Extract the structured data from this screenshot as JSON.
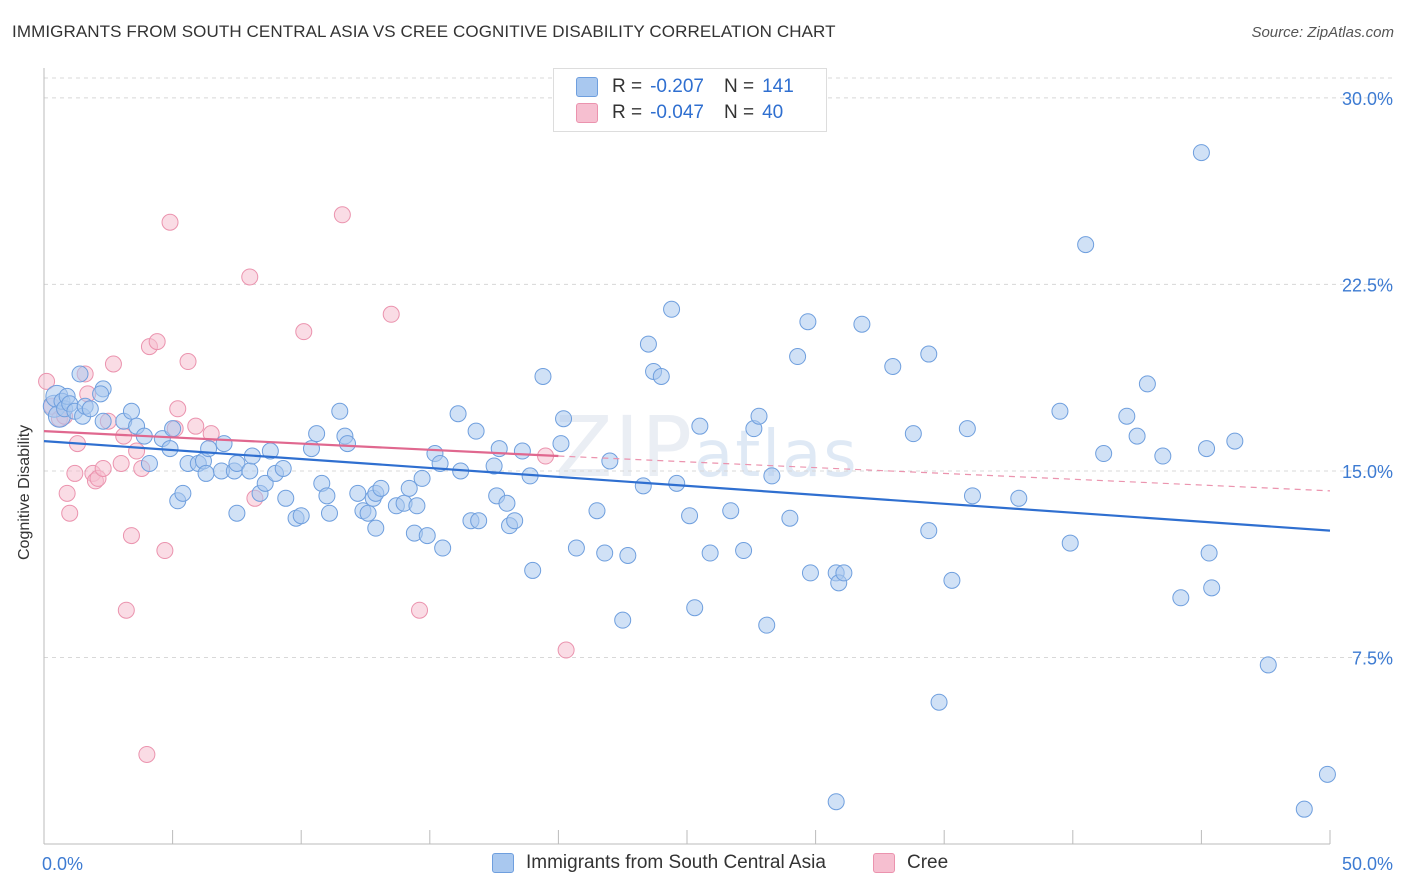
{
  "header": {
    "title": "IMMIGRANTS FROM SOUTH CENTRAL ASIA VS CREE COGNITIVE DISABILITY CORRELATION CHART",
    "source": "Source: ZipAtlas.com"
  },
  "watermark": {
    "zip": "ZIP",
    "atlas": "atlas"
  },
  "legend": {
    "rows": [
      {
        "r_label": "R =",
        "r_value": "-0.207",
        "n_label": "N =",
        "n_value": "141"
      },
      {
        "r_label": "R =",
        "r_value": "-0.047",
        "n_label": "N =",
        "n_value": "40"
      }
    ]
  },
  "colors": {
    "blue_fill": "#a9c8ef",
    "blue_stroke": "#6f9fde",
    "blue_line": "#2f6fd0",
    "pink_fill": "#f6bfd0",
    "pink_stroke": "#eb93ae",
    "pink_line": "#e0688f",
    "grid": "#d8d8d8",
    "tick_label": "#3d7bd2"
  },
  "chart_data": {
    "type": "scatter",
    "title": "IMMIGRANTS FROM SOUTH CENTRAL ASIA VS CREE COGNITIVE DISABILITY CORRELATION CHART",
    "xlabel": "",
    "ylabel": "Cognitive Disability",
    "xlim": [
      0,
      50
    ],
    "ylim": [
      0,
      30.8
    ],
    "x_tick_labels": [
      "0.0%",
      "50.0%"
    ],
    "y_ticks": [
      7.5,
      15.0,
      22.5,
      30.0
    ],
    "y_tick_labels": [
      "7.5%",
      "15.0%",
      "22.5%",
      "30.0%"
    ],
    "grid": "horizontal dashed",
    "legend_position": "top-center",
    "series": [
      {
        "name": "Immigrants from South Central Asia",
        "color": "#a9c8ef",
        "trend": {
          "x": [
            0,
            50
          ],
          "y": [
            16.2,
            12.6
          ],
          "style": "solid"
        },
        "points": [
          [
            0.4,
            17.6
          ],
          [
            0.5,
            18.0
          ],
          [
            0.6,
            17.2
          ],
          [
            0.7,
            17.8
          ],
          [
            0.8,
            17.5
          ],
          [
            0.9,
            18.0
          ],
          [
            1.0,
            17.7
          ],
          [
            1.2,
            17.4
          ],
          [
            1.4,
            18.9
          ],
          [
            1.5,
            17.2
          ],
          [
            1.6,
            17.6
          ],
          [
            1.8,
            17.5
          ],
          [
            2.3,
            18.3
          ],
          [
            2.2,
            18.1
          ],
          [
            2.3,
            17.0
          ],
          [
            3.1,
            17.0
          ],
          [
            3.4,
            17.4
          ],
          [
            3.6,
            16.8
          ],
          [
            3.9,
            16.4
          ],
          [
            4.1,
            15.3
          ],
          [
            4.6,
            16.3
          ],
          [
            4.9,
            15.9
          ],
          [
            5.0,
            16.7
          ],
          [
            5.2,
            13.8
          ],
          [
            5.4,
            14.1
          ],
          [
            5.6,
            15.3
          ],
          [
            6.0,
            15.3
          ],
          [
            6.2,
            15.4
          ],
          [
            6.3,
            14.9
          ],
          [
            6.4,
            15.9
          ],
          [
            6.9,
            15.0
          ],
          [
            7.0,
            16.1
          ],
          [
            7.4,
            15.0
          ],
          [
            7.5,
            15.3
          ],
          [
            7.5,
            13.3
          ],
          [
            8.0,
            15.0
          ],
          [
            8.1,
            15.6
          ],
          [
            8.4,
            14.1
          ],
          [
            8.6,
            14.5
          ],
          [
            8.8,
            15.8
          ],
          [
            9.0,
            14.9
          ],
          [
            9.3,
            15.1
          ],
          [
            9.4,
            13.9
          ],
          [
            9.8,
            13.1
          ],
          [
            10.0,
            13.2
          ],
          [
            10.4,
            15.9
          ],
          [
            10.6,
            16.5
          ],
          [
            10.8,
            14.5
          ],
          [
            11.0,
            14.0
          ],
          [
            11.1,
            13.3
          ],
          [
            11.5,
            17.4
          ],
          [
            11.7,
            16.4
          ],
          [
            11.8,
            16.1
          ],
          [
            12.2,
            14.1
          ],
          [
            12.4,
            13.4
          ],
          [
            12.6,
            13.3
          ],
          [
            12.8,
            13.9
          ],
          [
            12.9,
            12.7
          ],
          [
            12.9,
            14.1
          ],
          [
            13.1,
            14.3
          ],
          [
            13.7,
            13.6
          ],
          [
            14.0,
            13.7
          ],
          [
            14.5,
            13.6
          ],
          [
            14.4,
            12.5
          ],
          [
            14.9,
            12.4
          ],
          [
            14.2,
            14.3
          ],
          [
            14.7,
            14.7
          ],
          [
            15.2,
            15.7
          ],
          [
            15.4,
            15.3
          ],
          [
            15.5,
            11.9
          ],
          [
            16.1,
            17.3
          ],
          [
            16.2,
            15.0
          ],
          [
            16.6,
            13.0
          ],
          [
            16.8,
            16.6
          ],
          [
            16.9,
            13.0
          ],
          [
            17.5,
            15.2
          ],
          [
            17.6,
            14.0
          ],
          [
            17.7,
            15.9
          ],
          [
            18.0,
            13.7
          ],
          [
            18.1,
            12.8
          ],
          [
            18.3,
            13.0
          ],
          [
            18.6,
            15.8
          ],
          [
            18.9,
            14.8
          ],
          [
            19.0,
            11.0
          ],
          [
            19.4,
            18.8
          ],
          [
            20.1,
            16.1
          ],
          [
            20.2,
            17.1
          ],
          [
            20.7,
            11.9
          ],
          [
            21.5,
            13.4
          ],
          [
            21.8,
            11.7
          ],
          [
            22.0,
            15.4
          ],
          [
            22.5,
            9.0
          ],
          [
            22.7,
            11.6
          ],
          [
            23.3,
            14.4
          ],
          [
            23.5,
            20.1
          ],
          [
            23.7,
            19.0
          ],
          [
            24.0,
            18.8
          ],
          [
            24.4,
            21.5
          ],
          [
            24.6,
            14.5
          ],
          [
            25.1,
            13.2
          ],
          [
            25.3,
            9.5
          ],
          [
            25.5,
            16.8
          ],
          [
            25.9,
            11.7
          ],
          [
            26.7,
            13.4
          ],
          [
            27.2,
            11.8
          ],
          [
            27.6,
            16.7
          ],
          [
            27.8,
            17.2
          ],
          [
            28.1,
            8.8
          ],
          [
            28.3,
            14.8
          ],
          [
            29.0,
            13.1
          ],
          [
            29.3,
            19.6
          ],
          [
            29.7,
            21.0
          ],
          [
            29.8,
            10.9
          ],
          [
            30.8,
            10.9
          ],
          [
            30.8,
            1.7
          ],
          [
            30.9,
            10.5
          ],
          [
            31.1,
            10.9
          ],
          [
            31.8,
            20.9
          ],
          [
            33.0,
            19.2
          ],
          [
            33.8,
            16.5
          ],
          [
            34.4,
            19.7
          ],
          [
            34.4,
            12.6
          ],
          [
            34.8,
            5.7
          ],
          [
            35.3,
            10.6
          ],
          [
            35.9,
            16.7
          ],
          [
            36.1,
            14.0
          ],
          [
            37.9,
            13.9
          ],
          [
            39.5,
            17.4
          ],
          [
            39.9,
            12.1
          ],
          [
            40.5,
            24.1
          ],
          [
            41.2,
            15.7
          ],
          [
            42.1,
            17.2
          ],
          [
            42.5,
            16.4
          ],
          [
            42.9,
            18.5
          ],
          [
            43.5,
            15.6
          ],
          [
            44.2,
            9.9
          ],
          [
            45.3,
            11.7
          ],
          [
            45.4,
            10.3
          ],
          [
            45.2,
            15.9
          ],
          [
            46.3,
            16.2
          ],
          [
            47.6,
            7.2
          ],
          [
            49.0,
            1.4
          ],
          [
            49.9,
            2.8
          ],
          [
            28.9,
            29.4
          ],
          [
            45.0,
            27.8
          ]
        ]
      },
      {
        "name": "Cree",
        "color": "#f6bfd0",
        "trend": {
          "x": [
            0,
            20
          ],
          "y": [
            16.6,
            15.6
          ],
          "style": "solid",
          "extension": {
            "x": [
              20,
              50
            ],
            "y": [
              15.6,
              14.2
            ],
            "style": "dashed"
          }
        },
        "points": [
          [
            0.1,
            18.6
          ],
          [
            0.3,
            17.6
          ],
          [
            0.6,
            17.1
          ],
          [
            0.8,
            17.2
          ],
          [
            0.9,
            14.1
          ],
          [
            1.0,
            13.3
          ],
          [
            1.2,
            14.9
          ],
          [
            1.3,
            16.1
          ],
          [
            1.6,
            18.9
          ],
          [
            1.7,
            18.1
          ],
          [
            1.9,
            14.9
          ],
          [
            2.0,
            14.6
          ],
          [
            2.1,
            14.7
          ],
          [
            2.3,
            15.1
          ],
          [
            2.5,
            17.0
          ],
          [
            2.7,
            19.3
          ],
          [
            3.0,
            15.3
          ],
          [
            3.1,
            16.4
          ],
          [
            3.2,
            9.4
          ],
          [
            3.4,
            12.4
          ],
          [
            3.6,
            15.8
          ],
          [
            3.8,
            15.1
          ],
          [
            4.0,
            3.6
          ],
          [
            4.1,
            20.0
          ],
          [
            4.4,
            20.2
          ],
          [
            4.7,
            11.8
          ],
          [
            4.9,
            25.0
          ],
          [
            5.1,
            16.7
          ],
          [
            5.2,
            17.5
          ],
          [
            5.6,
            19.4
          ],
          [
            5.9,
            16.8
          ],
          [
            6.5,
            16.5
          ],
          [
            8.0,
            22.8
          ],
          [
            8.2,
            13.9
          ],
          [
            10.1,
            20.6
          ],
          [
            11.6,
            25.3
          ],
          [
            13.5,
            21.3
          ],
          [
            14.6,
            9.4
          ],
          [
            19.5,
            15.6
          ],
          [
            20.3,
            7.8
          ]
        ]
      }
    ]
  },
  "bottom_legend": [
    {
      "label": "Immigrants from South Central Asia"
    },
    {
      "label": "Cree"
    }
  ],
  "axis": {
    "x_left": "0.0%",
    "x_right": "50.0%",
    "y_labels": [
      "30.0%",
      "22.5%",
      "15.0%",
      "7.5%"
    ]
  }
}
